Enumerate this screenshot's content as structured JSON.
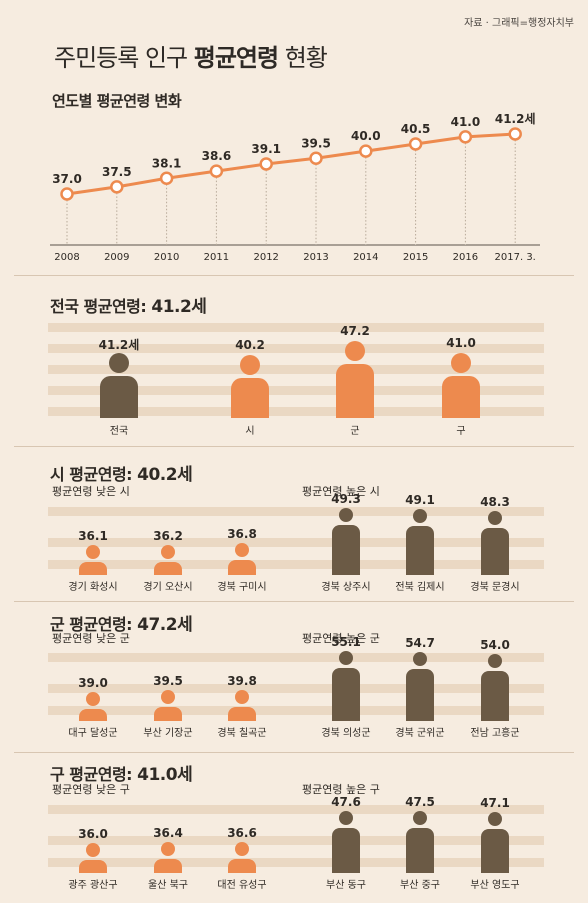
{
  "source": "자료 · 그래픽=행정자치부",
  "title_plain_1": "주민등록 인구 ",
  "title_bold": "평균연령",
  "title_plain_2": " 현황",
  "yearly": {
    "heading": "연도별 평균연령 변화",
    "points": [
      {
        "label": "37.0"
      },
      {
        "label": "37.5"
      },
      {
        "label": "38.1"
      },
      {
        "label": "38.6"
      },
      {
        "label": "39.1"
      },
      {
        "label": "39.5"
      },
      {
        "label": "40.0"
      },
      {
        "label": "40.5"
      },
      {
        "label": "41.0"
      },
      {
        "label": "41.2세"
      }
    ]
  },
  "national": {
    "heading_prefix": "전국 평균연령: ",
    "heading_value": "41.2세",
    "bars": [
      {
        "value_label": "41.2세",
        "name": "전국",
        "color": "#6b5a45"
      },
      {
        "value_label": "40.2",
        "name": "시",
        "color": "#ed8a4e"
      },
      {
        "value_label": "47.2",
        "name": "군",
        "color": "#ed8a4e"
      },
      {
        "value_label": "41.0",
        "name": "구",
        "color": "#ed8a4e"
      }
    ]
  },
  "si": {
    "heading_prefix": "시 평균연령: ",
    "heading_value": "40.2세",
    "low_heading": "평균연령 낮은 시",
    "high_heading": "평균연령 높은 시",
    "items": [
      {
        "value_label": "36.1",
        "name": "경기 화성시"
      },
      {
        "value_label": "36.2",
        "name": "경기 오산시"
      },
      {
        "value_label": "36.8",
        "name": "경북 구미시"
      },
      {
        "value_label": "49.3",
        "name": "경북 상주시"
      },
      {
        "value_label": "49.1",
        "name": "전북 김제시"
      },
      {
        "value_label": "48.3",
        "name": "경북 문경시"
      }
    ]
  },
  "gun": {
    "heading_prefix": "군 평균연령: ",
    "heading_value": "47.2세",
    "low_heading": "평균연령 낮은 군",
    "high_heading": "평균연령 높은 군",
    "items": [
      {
        "value_label": "39.0",
        "name": "대구 달성군"
      },
      {
        "value_label": "39.5",
        "name": "부산 기장군"
      },
      {
        "value_label": "39.8",
        "name": "경북 칠곡군"
      },
      {
        "value_label": "55.1",
        "name": "경북 의성군"
      },
      {
        "value_label": "54.7",
        "name": "경북 군위군"
      },
      {
        "value_label": "54.0",
        "name": "전남 고흥군"
      }
    ]
  },
  "gu": {
    "heading_prefix": "구 평균연령: ",
    "heading_value": "41.0세",
    "low_heading": "평균연령 낮은 구",
    "high_heading": "평균연령 높은 구",
    "items": [
      {
        "value_label": "36.0",
        "name": "광주 광산구"
      },
      {
        "value_label": "36.4",
        "name": "울산 북구"
      },
      {
        "value_label": "36.6",
        "name": "대전 유성구"
      },
      {
        "value_label": "47.6",
        "name": "부산 동구"
      },
      {
        "value_label": "47.5",
        "name": "부산 중구"
      },
      {
        "value_label": "47.1",
        "name": "부산 영도구"
      }
    ]
  },
  "colors": {
    "young": "#ed8a4e",
    "old": "#6b5a45",
    "line": "#ed8a4e",
    "stripe": "#ead8c3"
  },
  "chart_data": [
    {
      "type": "line",
      "title": "연도별 평균연령 변화",
      "x": [
        "2008",
        "2009",
        "2010",
        "2011",
        "2012",
        "2013",
        "2014",
        "2015",
        "2016",
        "2017. 3."
      ],
      "series": [
        {
          "values": [
            37.0,
            37.5,
            38.1,
            38.6,
            39.1,
            39.5,
            40.0,
            40.5,
            41.0,
            41.2
          ]
        }
      ],
      "grid": false
    },
    {
      "type": "bar",
      "title": "전국 평균연령: 41.2세",
      "categories": [
        "전국",
        "시",
        "군",
        "구"
      ],
      "values": [
        41.2,
        40.2,
        47.2,
        41.0
      ]
    },
    {
      "type": "bar",
      "title": "시 평균연령: 40.2세",
      "categories": [
        "경기 화성시",
        "경기 오산시",
        "경북 구미시",
        "경북 상주시",
        "전북 김제시",
        "경북 문경시"
      ],
      "values": [
        36.1,
        36.2,
        36.8,
        49.3,
        49.1,
        48.3
      ]
    },
    {
      "type": "bar",
      "title": "군 평균연령: 47.2세",
      "categories": [
        "대구 달성군",
        "부산 기장군",
        "경북 칠곡군",
        "경북 의성군",
        "경북 군위군",
        "전남 고흥군"
      ],
      "values": [
        39.0,
        39.5,
        39.8,
        55.1,
        54.7,
        54.0
      ]
    },
    {
      "type": "bar",
      "title": "구 평균연령: 41.0세",
      "categories": [
        "광주 광산구",
        "울산 북구",
        "대전 유성구",
        "부산 동구",
        "부산 중구",
        "부산 영도구"
      ],
      "values": [
        36.0,
        36.4,
        36.6,
        47.6,
        47.5,
        47.1
      ]
    }
  ]
}
